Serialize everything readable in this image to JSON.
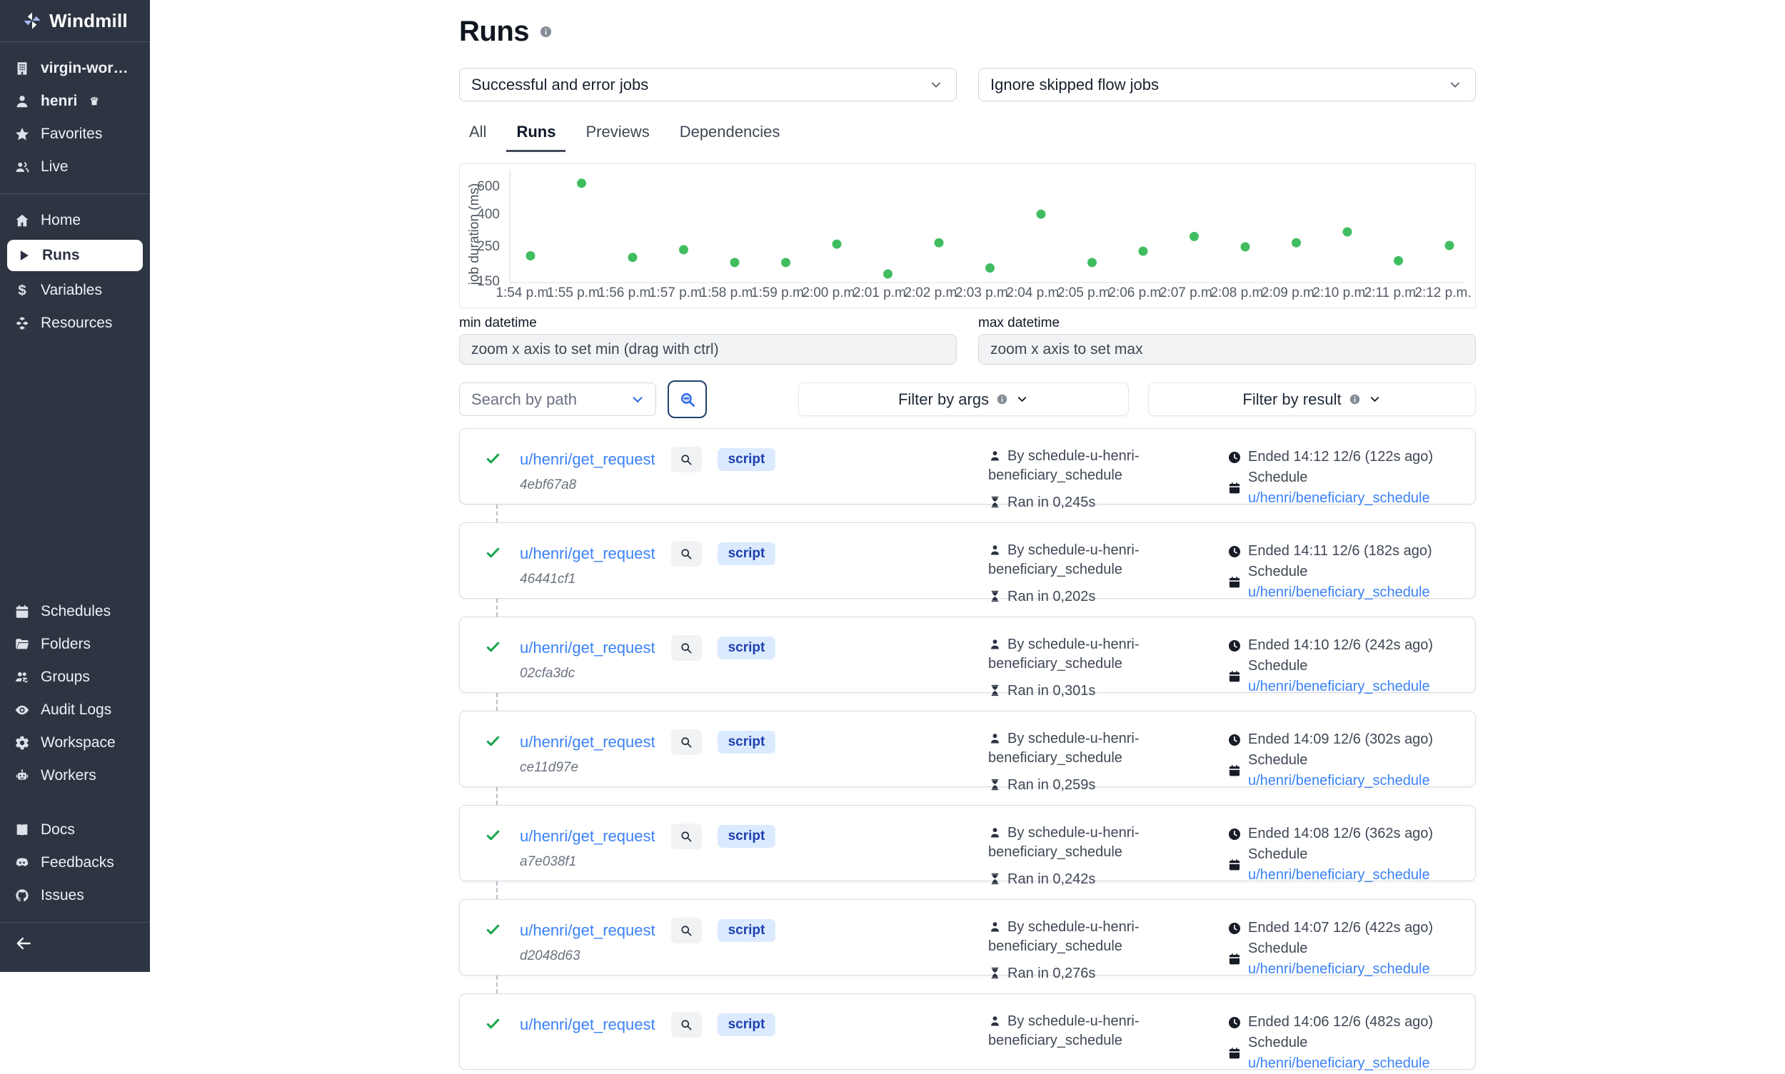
{
  "sidebar": {
    "brand": "Windmill",
    "workspace": "virgin-worksp…",
    "user": "henri",
    "nav_top": [
      {
        "label": "Favorites"
      },
      {
        "label": "Live"
      }
    ],
    "nav_main": [
      {
        "label": "Home"
      },
      {
        "label": "Runs",
        "active": true
      },
      {
        "label": "Variables"
      },
      {
        "label": "Resources"
      }
    ],
    "nav_admin": [
      {
        "label": "Schedules"
      },
      {
        "label": "Folders"
      },
      {
        "label": "Groups"
      },
      {
        "label": "Audit Logs"
      },
      {
        "label": "Workspace"
      },
      {
        "label": "Workers"
      }
    ],
    "nav_bottom": [
      {
        "label": "Docs"
      },
      {
        "label": "Feedbacks"
      },
      {
        "label": "Issues"
      }
    ]
  },
  "header": {
    "title": "Runs",
    "jobs_filter_value": "Successful and error jobs",
    "skipped_filter_value": "Ignore skipped flow jobs",
    "tabs": [
      {
        "label": "All"
      },
      {
        "label": "Runs",
        "active": true
      },
      {
        "label": "Previews"
      },
      {
        "label": "Dependencies"
      }
    ]
  },
  "chart_data": {
    "type": "scatter",
    "title": "",
    "xlabel": "",
    "ylabel": "job duration (ms)",
    "yscale": "log",
    "ylim": [
      140,
      700
    ],
    "yticks": [
      600,
      400,
      250,
      150
    ],
    "grid": false,
    "legend": false,
    "point_color": "#41bd61",
    "categories": [
      "1:54 p.m.",
      "1:55 p.m.",
      "1:56 p.m.",
      "1:57 p.m.",
      "1:58 p.m.",
      "1:59 p.m.",
      "2:00 p.m.",
      "2:01 p.m.",
      "2:02 p.m.",
      "2:03 p.m.",
      "2:04 p.m.",
      "2:05 p.m.",
      "2:06 p.m.",
      "2:07 p.m.",
      "2:08 p.m.",
      "2:09 p.m.",
      "2:10 p.m.",
      "2:11 p.m.",
      "2:12 p.m."
    ],
    "values": [
      215,
      620,
      210,
      235,
      195,
      195,
      255,
      165,
      260,
      180,
      395,
      195,
      230,
      285,
      245,
      260,
      305,
      200,
      250
    ]
  },
  "datetime": {
    "min_label": "min datetime",
    "min_placeholder": "zoom x axis to set min (drag with ctrl)",
    "max_label": "max datetime",
    "max_placeholder": "zoom x axis to set max"
  },
  "filters": {
    "search_placeholder": "Search by path",
    "args_label": "Filter by args",
    "result_label": "Filter by result"
  },
  "runs": [
    {
      "path": "u/henri/get_request",
      "badge": "script",
      "id": "4ebf67a8",
      "by": "By schedule-u-henri-beneficiary_schedule",
      "ran": "Ran in 0,245s",
      "ended": "Ended 14:12 12/6 (122s ago)",
      "schedule_label": "Schedule",
      "schedule": "u/henri/beneficiary_schedule"
    },
    {
      "path": "u/henri/get_request",
      "badge": "script",
      "id": "46441cf1",
      "by": "By schedule-u-henri-beneficiary_schedule",
      "ran": "Ran in 0,202s",
      "ended": "Ended 14:11 12/6 (182s ago)",
      "schedule_label": "Schedule",
      "schedule": "u/henri/beneficiary_schedule"
    },
    {
      "path": "u/henri/get_request",
      "badge": "script",
      "id": "02cfa3dc",
      "by": "By schedule-u-henri-beneficiary_schedule",
      "ran": "Ran in 0,301s",
      "ended": "Ended 14:10 12/6 (242s ago)",
      "schedule_label": "Schedule",
      "schedule": "u/henri/beneficiary_schedule"
    },
    {
      "path": "u/henri/get_request",
      "badge": "script",
      "id": "ce11d97e",
      "by": "By schedule-u-henri-beneficiary_schedule",
      "ran": "Ran in 0,259s",
      "ended": "Ended 14:09 12/6 (302s ago)",
      "schedule_label": "Schedule",
      "schedule": "u/henri/beneficiary_schedule"
    },
    {
      "path": "u/henri/get_request",
      "badge": "script",
      "id": "a7e038f1",
      "by": "By schedule-u-henri-beneficiary_schedule",
      "ran": "Ran in 0,242s",
      "ended": "Ended 14:08 12/6 (362s ago)",
      "schedule_label": "Schedule",
      "schedule": "u/henri/beneficiary_schedule"
    },
    {
      "path": "u/henri/get_request",
      "badge": "script",
      "id": "d2048d63",
      "by": "By schedule-u-henri-beneficiary_schedule",
      "ran": "Ran in 0,276s",
      "ended": "Ended 14:07 12/6 (422s ago)",
      "schedule_label": "Schedule",
      "schedule": "u/henri/beneficiary_schedule"
    },
    {
      "path": "u/henri/get_request",
      "badge": "script",
      "id": "",
      "by": "By schedule-u-henri-beneficiary_schedule",
      "ran": "",
      "ended": "Ended 14:06 12/6 (482s ago)",
      "schedule_label": "Schedule",
      "schedule": "u/henri/beneficiary_schedule",
      "partial": true
    }
  ]
}
